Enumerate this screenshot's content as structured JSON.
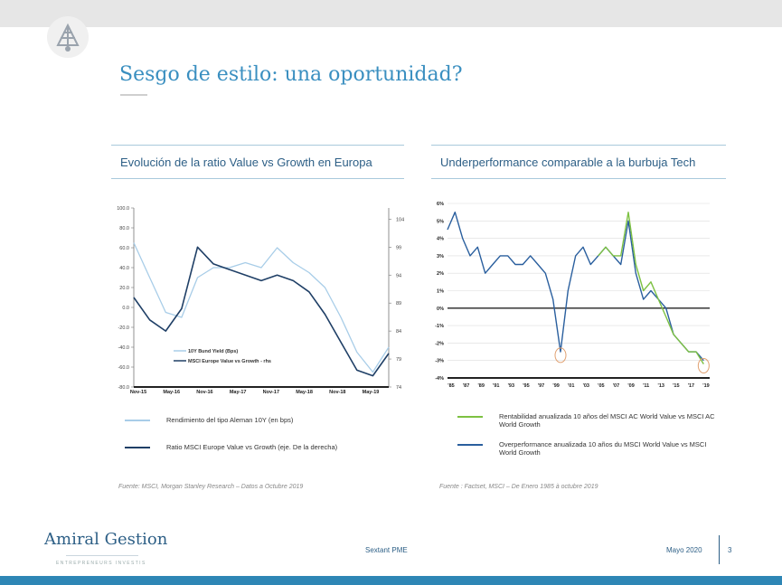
{
  "slide": {
    "title": "Sesgo de estilo: una oportunidad?",
    "footer_center": "Sextant PME",
    "footer_date": "Mayo 2020",
    "page_number": "3",
    "brand_name": "Amiral Gestion",
    "brand_tagline": "ENTREPRENEURS INVESTIS"
  },
  "left_panel": {
    "heading": "Evolución de la ratio Value vs Growth en Europa",
    "legend_items": [
      {
        "label": "Rendimiento del tipo Aleman 10Y (en bps)",
        "color": "#a8cde8"
      },
      {
        "label": "Ratio  MSCI Europe Value vs Growth (eje. De la derecha)",
        "color": "#1f3f66"
      }
    ],
    "source": "Fuente: MSCI, Morgan Stanley Research – Datos a  Octubre 2019"
  },
  "right_panel": {
    "heading": "Underperformance comparable a la burbuja Tech",
    "legend_items": [
      {
        "label": "Rentabilidad anualizada 10 años del MSCI AC World Value vs MSCI AC World Growth",
        "color": "#7dc142"
      },
      {
        "label": "Overperformance anualizada 10 años du MSCI World Value vs MSCI World Growth",
        "color": "#2a5f9e"
      }
    ],
    "source": "Fuente : Factset, MSCI – De Enero 1985 à octubre 2019"
  },
  "chart_data": [
    {
      "type": "line",
      "x": [
        "Nov-15",
        "Feb-16",
        "May-16",
        "Aug-16",
        "Nov-16",
        "Feb-17",
        "May-17",
        "Aug-17",
        "Nov-17",
        "Feb-18",
        "May-18",
        "Aug-18",
        "Nov-18",
        "Feb-19",
        "May-19",
        "Aug-19",
        "Oct-19"
      ],
      "x_tick_labels": [
        "Nov-15",
        "May-16",
        "Nov-16",
        "May-17",
        "Nov-17",
        "May-18",
        "Nov-18",
        "May-19"
      ],
      "y_left_ticks": [
        "100.0",
        "80.0",
        "60.0",
        "40.0",
        "20.0",
        "0.0",
        "-20.0",
        "-40.0",
        "-60.0",
        "-80.0"
      ],
      "y_right_ticks": [
        "104",
        "99",
        "94",
        "89",
        "84",
        "79",
        "74"
      ],
      "ylim_left": [
        -80,
        100
      ],
      "ylim_right": [
        74,
        106
      ],
      "inset_legend": [
        "10Y Bund Yield (Bps)",
        "MSCI Europe Value vs Growth - rhs"
      ],
      "series": [
        {
          "name": "10Y Bund Yield (Bps)",
          "axis": "left",
          "color": "#a8cde8",
          "values": [
            65,
            30,
            -5,
            -10,
            30,
            40,
            40,
            45,
            40,
            60,
            45,
            35,
            20,
            -10,
            -45,
            -65,
            -40
          ]
        },
        {
          "name": "MSCI Europe Value vs Growth - rhs",
          "axis": "right",
          "color": "#1f3f66",
          "values": [
            90,
            86,
            84,
            88,
            99,
            96,
            95,
            94,
            93,
            94,
            93,
            91,
            87,
            82,
            77,
            76,
            80
          ]
        }
      ]
    },
    {
      "type": "line",
      "x_tick_labels": [
        "'85",
        "'87",
        "'89",
        "'91",
        "'93",
        "'95",
        "'97",
        "'99",
        "'01",
        "'03",
        "'05",
        "'07",
        "'09",
        "'11",
        "'13",
        "'15",
        "'17",
        "'19"
      ],
      "y_ticks": [
        "6%",
        "5%",
        "4%",
        "3%",
        "2%",
        "1%",
        "0%",
        "-1%",
        "-2%",
        "-3%",
        "-4%"
      ],
      "ylim": [
        -4,
        6
      ],
      "series": [
        {
          "name": "Overperformance anualizada 10 años du MSCI World Value vs MSCI World Growth",
          "color": "#2a5f9e",
          "x": [
            1985,
            1986,
            1987,
            1988,
            1989,
            1990,
            1991,
            1992,
            1993,
            1994,
            1995,
            1996,
            1997,
            1998,
            1999,
            2000,
            2001,
            2002,
            2003,
            2004,
            2005,
            2006,
            2007,
            2008,
            2009,
            2010,
            2011,
            2012,
            2013,
            2014,
            2015,
            2016,
            2017,
            2018,
            2019
          ],
          "values": [
            4.5,
            5.5,
            4.0,
            3.0,
            3.5,
            2.0,
            2.5,
            3.0,
            3.0,
            2.5,
            2.5,
            3.0,
            2.5,
            2.0,
            0.5,
            -2.5,
            1.0,
            3.0,
            3.5,
            2.5,
            3.0,
            3.5,
            3.0,
            2.5,
            5.0,
            2.0,
            0.5,
            1.0,
            0.5,
            0.0,
            -1.5,
            -2.0,
            -2.5,
            -2.5,
            -3.0
          ]
        },
        {
          "name": "Rentabilidad anualizada 10 años del MSCI AC World Value vs MSCI AC World Growth",
          "color": "#7dc142",
          "x": [
            2005,
            2006,
            2007,
            2008,
            2009,
            2010,
            2011,
            2012,
            2013,
            2014,
            2015,
            2016,
            2017,
            2018,
            2019
          ],
          "values": [
            3.0,
            3.5,
            3.0,
            3.0,
            5.5,
            2.5,
            1.0,
            1.5,
            0.5,
            -0.5,
            -1.5,
            -2.0,
            -2.5,
            -2.5,
            -3.2
          ]
        }
      ],
      "highlights": [
        {
          "x": 2000,
          "y": -2.7
        },
        {
          "x": 2019,
          "y": -3.3
        }
      ]
    }
  ]
}
